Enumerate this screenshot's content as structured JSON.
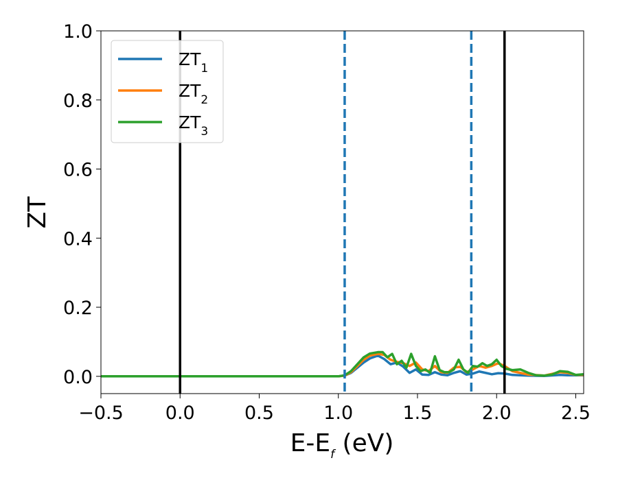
{
  "chart_data": {
    "type": "line",
    "xlabel": {
      "main": "E-E",
      "sub": "f",
      "unit": " (eV)"
    },
    "ylabel": "ZT",
    "xlim": [
      -0.5,
      2.55
    ],
    "ylim": [
      -0.05,
      1.0
    ],
    "xticks": [
      -0.5,
      0.0,
      0.5,
      1.0,
      1.5,
      2.0,
      2.5
    ],
    "xtick_labels": [
      "−0.5",
      "0.0",
      "0.5",
      "1.0",
      "1.5",
      "2.0",
      "2.5"
    ],
    "yticks": [
      0.0,
      0.2,
      0.4,
      0.6,
      0.8,
      1.0
    ],
    "ytick_labels": [
      "0.0",
      "0.2",
      "0.4",
      "0.6",
      "0.8",
      "1.0"
    ],
    "grid": false,
    "legend_position": "top-left",
    "vlines_solid": [
      0.0,
      2.05
    ],
    "vlines_dashed": [
      1.04,
      1.84
    ],
    "vline_solid_color": "#000000",
    "vline_dashed_color": "#1f77b4",
    "series": [
      {
        "name": "ZT",
        "sub": "1",
        "color": "#1f77b4",
        "points": [
          [
            -0.5,
            0
          ],
          [
            1.0,
            0
          ],
          [
            1.04,
            0.002
          ],
          [
            1.08,
            0.01
          ],
          [
            1.12,
            0.025
          ],
          [
            1.16,
            0.04
          ],
          [
            1.2,
            0.052
          ],
          [
            1.25,
            0.06
          ],
          [
            1.29,
            0.05
          ],
          [
            1.33,
            0.035
          ],
          [
            1.37,
            0.04
          ],
          [
            1.41,
            0.028
          ],
          [
            1.45,
            0.01
          ],
          [
            1.49,
            0.02
          ],
          [
            1.53,
            0.005
          ],
          [
            1.57,
            0.004
          ],
          [
            1.61,
            0.012
          ],
          [
            1.65,
            0.005
          ],
          [
            1.69,
            0.003
          ],
          [
            1.73,
            0.01
          ],
          [
            1.77,
            0.015
          ],
          [
            1.81,
            0.005
          ],
          [
            1.85,
            0.008
          ],
          [
            1.89,
            0.014
          ],
          [
            1.93,
            0.01
          ],
          [
            1.97,
            0.006
          ],
          [
            2.01,
            0.009
          ],
          [
            2.05,
            0.008
          ],
          [
            2.1,
            0.004
          ],
          [
            2.2,
            0.002
          ],
          [
            2.3,
            0.001
          ],
          [
            2.4,
            0.004
          ],
          [
            2.45,
            0.003
          ],
          [
            2.55,
            0.003
          ]
        ]
      },
      {
        "name": "ZT",
        "sub": "2",
        "color": "#ff7f0e",
        "points": [
          [
            -0.5,
            0
          ],
          [
            1.0,
            0
          ],
          [
            1.04,
            0.002
          ],
          [
            1.08,
            0.012
          ],
          [
            1.12,
            0.03
          ],
          [
            1.16,
            0.048
          ],
          [
            1.2,
            0.06
          ],
          [
            1.25,
            0.065
          ],
          [
            1.29,
            0.062
          ],
          [
            1.33,
            0.048
          ],
          [
            1.37,
            0.042
          ],
          [
            1.41,
            0.038
          ],
          [
            1.45,
            0.03
          ],
          [
            1.49,
            0.04
          ],
          [
            1.53,
            0.02
          ],
          [
            1.57,
            0.015
          ],
          [
            1.61,
            0.03
          ],
          [
            1.65,
            0.012
          ],
          [
            1.69,
            0.01
          ],
          [
            1.73,
            0.025
          ],
          [
            1.77,
            0.028
          ],
          [
            1.81,
            0.012
          ],
          [
            1.85,
            0.02
          ],
          [
            1.89,
            0.03
          ],
          [
            1.93,
            0.025
          ],
          [
            1.97,
            0.03
          ],
          [
            2.01,
            0.038
          ],
          [
            2.05,
            0.03
          ],
          [
            2.1,
            0.015
          ],
          [
            2.15,
            0.01
          ],
          [
            2.2,
            0.005
          ],
          [
            2.3,
            0.002
          ],
          [
            2.4,
            0.012
          ],
          [
            2.45,
            0.01
          ],
          [
            2.5,
            0.004
          ],
          [
            2.55,
            0.004
          ]
        ]
      },
      {
        "name": "ZT",
        "sub": "3",
        "color": "#2ca02c",
        "points": [
          [
            -0.5,
            0
          ],
          [
            1.0,
            0
          ],
          [
            1.04,
            0.003
          ],
          [
            1.08,
            0.015
          ],
          [
            1.12,
            0.035
          ],
          [
            1.16,
            0.055
          ],
          [
            1.2,
            0.066
          ],
          [
            1.25,
            0.07
          ],
          [
            1.28,
            0.07
          ],
          [
            1.31,
            0.055
          ],
          [
            1.34,
            0.065
          ],
          [
            1.37,
            0.035
          ],
          [
            1.4,
            0.045
          ],
          [
            1.43,
            0.025
          ],
          [
            1.46,
            0.065
          ],
          [
            1.49,
            0.03
          ],
          [
            1.52,
            0.015
          ],
          [
            1.55,
            0.02
          ],
          [
            1.58,
            0.01
          ],
          [
            1.61,
            0.058
          ],
          [
            1.64,
            0.018
          ],
          [
            1.67,
            0.012
          ],
          [
            1.7,
            0.012
          ],
          [
            1.73,
            0.02
          ],
          [
            1.76,
            0.048
          ],
          [
            1.79,
            0.02
          ],
          [
            1.82,
            0.01
          ],
          [
            1.85,
            0.03
          ],
          [
            1.88,
            0.028
          ],
          [
            1.91,
            0.038
          ],
          [
            1.94,
            0.03
          ],
          [
            1.97,
            0.035
          ],
          [
            2.0,
            0.048
          ],
          [
            2.03,
            0.03
          ],
          [
            2.06,
            0.022
          ],
          [
            2.1,
            0.018
          ],
          [
            2.15,
            0.02
          ],
          [
            2.2,
            0.01
          ],
          [
            2.25,
            0.003
          ],
          [
            2.3,
            0.002
          ],
          [
            2.35,
            0.005
          ],
          [
            2.4,
            0.015
          ],
          [
            2.45,
            0.013
          ],
          [
            2.5,
            0.004
          ],
          [
            2.55,
            0.006
          ]
        ]
      }
    ]
  }
}
